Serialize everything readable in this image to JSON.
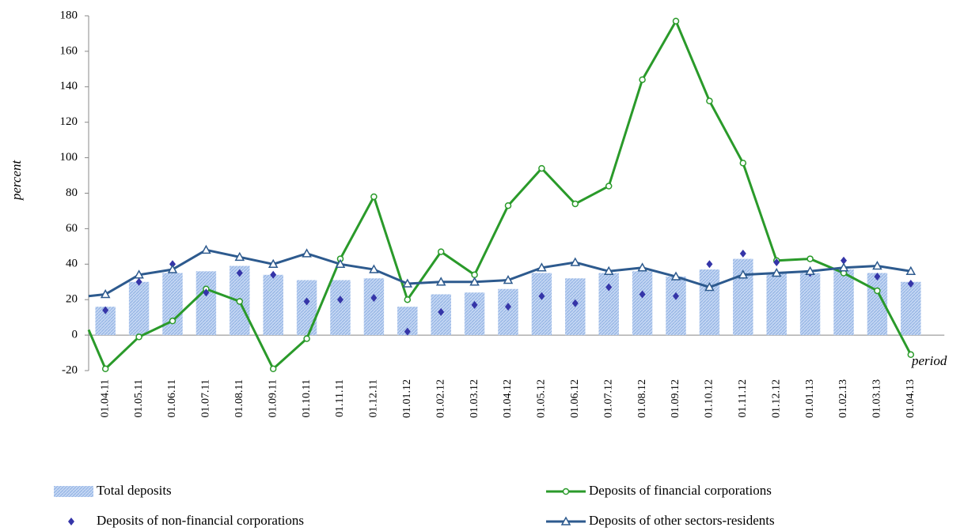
{
  "chart_data": {
    "type": "combo",
    "y_label": "percent",
    "x_label": "period",
    "categories": [
      null,
      "01.04.11",
      "01.05.11",
      "01.06.11",
      "01.07.11",
      "01.08.11",
      "01.09.11",
      "01.10.11",
      "01.11.11",
      "01.12.11",
      "01.01.12",
      "01.02.12",
      "01.03.12",
      "01.04.12",
      "01.05.12",
      "01.06.12",
      "01.07.12",
      "01.08.12",
      "01.09.12",
      "01.10.12",
      "01.11.12",
      "01.12.12",
      "01.01.13",
      "01.02.13",
      "01.03.13",
      "01.04.13"
    ],
    "series": [
      {
        "name": "Total deposits",
        "type": "bar",
        "color": "#a9c4ec",
        "values": [
          null,
          16,
          30,
          35,
          36,
          39,
          34,
          31,
          31,
          32,
          16,
          23,
          24,
          26,
          35,
          32,
          35,
          36,
          33,
          37,
          43,
          35,
          35,
          37,
          35,
          30
        ]
      },
      {
        "name": "Deposits of financial corporations",
        "type": "line",
        "marker": "circle",
        "color": "#2a9a2a",
        "values": [
          3,
          -19,
          -1,
          8,
          26,
          19,
          -19,
          -2,
          43,
          78,
          20,
          47,
          34,
          73,
          94,
          74,
          84,
          144,
          177,
          132,
          97,
          42,
          43,
          35,
          25,
          -11
        ]
      },
      {
        "name": "Deposits of non-financial corporations",
        "type": "scatter",
        "color": "#3535a8",
        "values": [
          null,
          14,
          30,
          40,
          24,
          35,
          34,
          19,
          20,
          21,
          2,
          13,
          17,
          16,
          22,
          18,
          27,
          23,
          22,
          40,
          46,
          41,
          35,
          42,
          33,
          29
        ]
      },
      {
        "name": "Deposits of other sectors-residents",
        "type": "line",
        "marker": "triangle",
        "color": "#2d5a8e",
        "values": [
          22,
          23,
          34,
          37,
          48,
          44,
          40,
          46,
          40,
          37,
          29,
          30,
          30,
          31,
          38,
          41,
          36,
          38,
          33,
          27,
          34,
          35,
          36,
          38,
          39,
          36
        ]
      }
    ],
    "ylim": [
      -20,
      180
    ],
    "yticks": [
      -20,
      0,
      20,
      40,
      60,
      80,
      100,
      120,
      140,
      160,
      180
    ],
    "grid": false
  }
}
